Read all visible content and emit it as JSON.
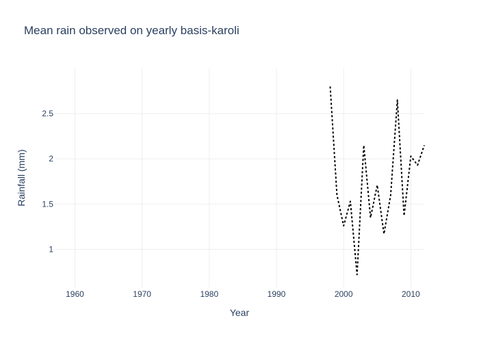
{
  "chart_data": {
    "type": "line",
    "title": "Mean rain observed on yearly basis-karoli",
    "xlabel": "Year",
    "ylabel": "Rainfall (mm)",
    "xlim": [
      1957,
      2012
    ],
    "ylim": [
      0.58,
      3.0
    ],
    "xticks": [
      1960,
      1970,
      1980,
      1990,
      2000,
      2010
    ],
    "yticks": [
      1,
      1.5,
      2,
      2.5
    ],
    "ytick_labels": [
      "1",
      "1.5",
      "2",
      "2.5"
    ],
    "grid": true,
    "legend": "none",
    "series": [
      {
        "line_color": "#000000",
        "line_style": "dotted",
        "x": [
          1998,
          1999,
          2000,
          2001,
          2002,
          2003,
          2004,
          2005,
          2006,
          2007,
          2008,
          2009,
          2010,
          2011,
          2012
        ],
        "y": [
          2.8,
          1.6,
          1.26,
          1.53,
          0.72,
          2.15,
          1.35,
          1.71,
          1.17,
          1.6,
          2.65,
          1.37,
          2.03,
          1.93,
          2.15
        ]
      }
    ]
  }
}
